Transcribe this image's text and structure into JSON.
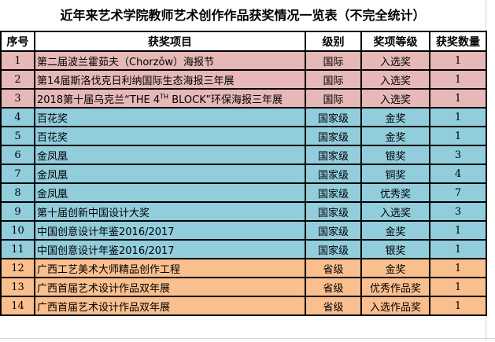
{
  "title": "近年来艺术学院教师艺术创作作品获奖情况一览表（不完全统计）",
  "headers": [
    "序号",
    "获奖项目",
    "级别",
    "奖项等级",
    "获奖数量"
  ],
  "colors": {
    "international": "#e6b8b7",
    "national": "#92cddc",
    "provincial": "#fabf8f"
  },
  "rows": [
    {
      "no": "1",
      "name": "第二届波兰霍茹夫（Chorzǒw）海报节",
      "level": "国际",
      "award": "入选奖",
      "count": "1",
      "group": "international"
    },
    {
      "no": "2",
      "name": "第14届斯洛伐克日利纳国际生态海报三年展",
      "level": "国际",
      "award": "入选奖",
      "count": "1",
      "group": "international"
    },
    {
      "no": "3",
      "name": "2018第十届乌克兰“THE 4TH BLOCK”环保海报三年展",
      "name_pre": "2018第十届乌克兰“THE 4",
      "name_sup": "TH",
      "name_post": " BLOCK”环保海报三年展",
      "level": "国际",
      "award": "入选奖",
      "count": "1",
      "group": "international"
    },
    {
      "no": "4",
      "name": "百花奖",
      "level": "国家级",
      "award": "金奖",
      "count": "1",
      "group": "national"
    },
    {
      "no": "5",
      "name": "百花奖",
      "level": "国家级",
      "award": "金奖",
      "count": "1",
      "group": "national"
    },
    {
      "no": "6",
      "name": "金凤凰",
      "level": "国家级",
      "award": "银奖",
      "count": "3",
      "group": "national"
    },
    {
      "no": "7",
      "name": "金凤凰",
      "level": "国家级",
      "award": "铜奖",
      "count": "4",
      "group": "national"
    },
    {
      "no": "8",
      "name": "金凤凰",
      "level": "国家级",
      "award": "优秀奖",
      "count": "7",
      "group": "national"
    },
    {
      "no": "9",
      "name": "第十届创新中国设计大奖",
      "level": "国家级",
      "award": "入选奖",
      "count": "3",
      "group": "national"
    },
    {
      "no": "10",
      "name": "中国创意设计年鉴2016/2017",
      "level": "国家级",
      "award": "金奖",
      "count": "1",
      "group": "national"
    },
    {
      "no": "11",
      "name": "中国创意设计年鉴2016/2017",
      "level": "国家级",
      "award": "银奖",
      "count": "1",
      "group": "national"
    },
    {
      "no": "12",
      "name": "广西工艺美术大师精品创作工程",
      "level": "省级",
      "award": "金奖",
      "count": "1",
      "group": "provincial"
    },
    {
      "no": "13",
      "name": "广西首届艺术设计作品双年展",
      "level": "省级",
      "award": "优秀作品奖",
      "count": "1",
      "group": "provincial"
    },
    {
      "no": "14",
      "name": "广西首届艺术设计作品双年展",
      "level": "省级",
      "award": "入选作品奖",
      "count": "1",
      "group": "provincial"
    }
  ]
}
